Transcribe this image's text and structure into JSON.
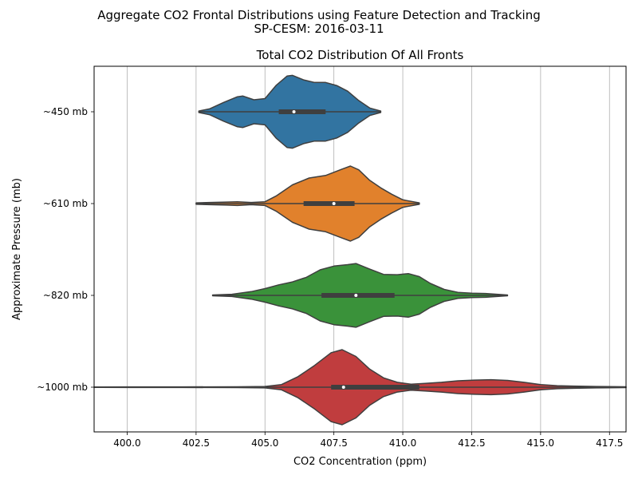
{
  "figure": {
    "suptitle_line1": "Aggregate CO2 Frontal Distributions using Feature Detection and Tracking",
    "suptitle_line2": "SP-CESM: 2016-03-11"
  },
  "chart_data": {
    "type": "violin",
    "title": "Total CO2 Distribution Of All Fronts",
    "xlabel": "CO2 Concentration (ppm)",
    "ylabel": "Approximate Pressure (mb)",
    "xlim": [
      398.8,
      418.1
    ],
    "xticks": [
      400.0,
      402.5,
      405.0,
      407.5,
      410.0,
      412.5,
      415.0,
      417.5
    ],
    "xtick_labels": [
      "400.0",
      "402.5",
      "405.0",
      "407.5",
      "410.0",
      "412.5",
      "415.0",
      "417.5"
    ],
    "grid": "vertical",
    "categories": [
      "~450 mb",
      "~610 mb",
      "~820 mb",
      "~1000 mb"
    ],
    "series": [
      {
        "category": "~450 mb",
        "color": "#3274a1",
        "min": 402.6,
        "q1": 405.5,
        "median": 406.05,
        "q3": 407.2,
        "max": 409.2,
        "density": [
          [
            402.6,
            0.02
          ],
          [
            403.0,
            0.08
          ],
          [
            403.5,
            0.25
          ],
          [
            404.0,
            0.4
          ],
          [
            404.2,
            0.42
          ],
          [
            404.6,
            0.32
          ],
          [
            405.0,
            0.35
          ],
          [
            405.4,
            0.7
          ],
          [
            405.8,
            0.95
          ],
          [
            406.0,
            0.97
          ],
          [
            406.4,
            0.85
          ],
          [
            406.8,
            0.78
          ],
          [
            407.2,
            0.78
          ],
          [
            407.6,
            0.7
          ],
          [
            408.0,
            0.55
          ],
          [
            408.4,
            0.3
          ],
          [
            408.8,
            0.1
          ],
          [
            409.2,
            0.02
          ]
        ]
      },
      {
        "category": "~610 mb",
        "color": "#e1812c",
        "min": 402.5,
        "q1": 406.4,
        "median": 407.5,
        "q3": 408.25,
        "max": 410.6,
        "density": [
          [
            402.5,
            0.02
          ],
          [
            403.0,
            0.03
          ],
          [
            403.6,
            0.04
          ],
          [
            404.0,
            0.05
          ],
          [
            404.5,
            0.03
          ],
          [
            405.0,
            0.05
          ],
          [
            405.4,
            0.2
          ],
          [
            406.0,
            0.5
          ],
          [
            406.6,
            0.68
          ],
          [
            407.2,
            0.75
          ],
          [
            407.8,
            0.92
          ],
          [
            408.1,
            1.0
          ],
          [
            408.4,
            0.9
          ],
          [
            408.8,
            0.62
          ],
          [
            409.2,
            0.42
          ],
          [
            409.6,
            0.25
          ],
          [
            410.0,
            0.1
          ],
          [
            410.6,
            0.02
          ]
        ]
      },
      {
        "category": "~820 mb",
        "color": "#3a923a",
        "min": 403.1,
        "q1": 407.05,
        "median": 408.3,
        "q3": 409.7,
        "max": 413.8,
        "density": [
          [
            403.1,
            0.01
          ],
          [
            403.8,
            0.03
          ],
          [
            404.5,
            0.1
          ],
          [
            405.0,
            0.18
          ],
          [
            405.5,
            0.28
          ],
          [
            406.0,
            0.36
          ],
          [
            406.5,
            0.48
          ],
          [
            407.0,
            0.68
          ],
          [
            407.5,
            0.78
          ],
          [
            408.0,
            0.82
          ],
          [
            408.3,
            0.85
          ],
          [
            408.8,
            0.7
          ],
          [
            409.3,
            0.56
          ],
          [
            409.8,
            0.55
          ],
          [
            410.2,
            0.58
          ],
          [
            410.6,
            0.5
          ],
          [
            411.0,
            0.32
          ],
          [
            411.5,
            0.16
          ],
          [
            412.0,
            0.08
          ],
          [
            412.5,
            0.06
          ],
          [
            413.0,
            0.05
          ],
          [
            413.8,
            0.01
          ]
        ]
      },
      {
        "category": "~1000 mb",
        "color": "#c03d3e",
        "min": 403.1,
        "q1": 407.4,
        "median": 407.85,
        "q3": 410.6,
        "max": 418.1,
        "density": [
          [
            398.8,
            0.005
          ],
          [
            400.0,
            0.008
          ],
          [
            402.0,
            0.008
          ],
          [
            404.0,
            0.01
          ],
          [
            405.0,
            0.02
          ],
          [
            405.6,
            0.07
          ],
          [
            406.2,
            0.28
          ],
          [
            406.8,
            0.58
          ],
          [
            407.4,
            0.92
          ],
          [
            407.8,
            1.0
          ],
          [
            408.3,
            0.82
          ],
          [
            408.8,
            0.48
          ],
          [
            409.3,
            0.25
          ],
          [
            409.8,
            0.13
          ],
          [
            410.3,
            0.08
          ],
          [
            410.8,
            0.1
          ],
          [
            411.4,
            0.13
          ],
          [
            412.0,
            0.17
          ],
          [
            412.6,
            0.19
          ],
          [
            413.2,
            0.2
          ],
          [
            413.8,
            0.18
          ],
          [
            414.4,
            0.13
          ],
          [
            415.0,
            0.07
          ],
          [
            415.6,
            0.04
          ],
          [
            416.2,
            0.03
          ],
          [
            417.0,
            0.02
          ],
          [
            418.1,
            0.01
          ]
        ]
      }
    ]
  }
}
